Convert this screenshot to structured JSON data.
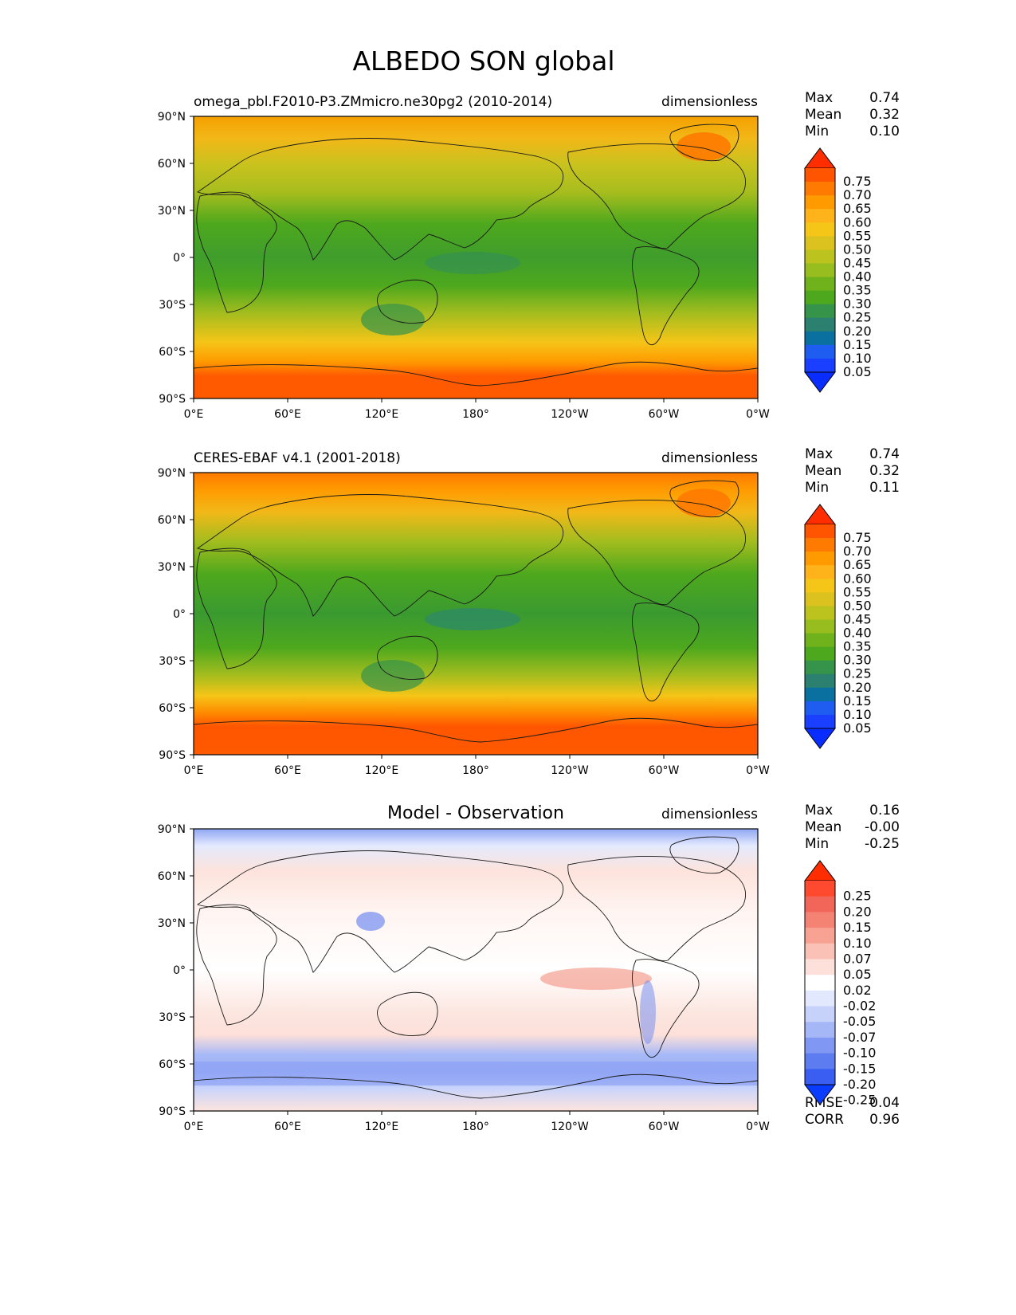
{
  "figure": {
    "title": "ALBEDO SON global"
  },
  "axes": {
    "lat_ticks": [
      "90°N",
      "60°N",
      "30°N",
      "0°",
      "30°S",
      "60°S",
      "90°S"
    ],
    "lon_ticks": [
      "0°E",
      "60°E",
      "120°E",
      "180°",
      "120°W",
      "60°W",
      "0°W"
    ]
  },
  "panels": [
    {
      "kind": "model",
      "title_left": "omega_pbl.F2010-P3.ZMmicro.ne30pg2 (2010-2014)",
      "title_center": "",
      "units": "dimensionless",
      "stats": [
        {
          "label": "Max",
          "value": "0.74"
        },
        {
          "label": "Mean",
          "value": "0.32"
        },
        {
          "label": "Min",
          "value": "0.10"
        }
      ],
      "extra_stats": []
    },
    {
      "kind": "obs",
      "title_left": "CERES-EBAF v4.1 (2001-2018)",
      "title_center": "",
      "units": "dimensionless",
      "stats": [
        {
          "label": "Max",
          "value": "0.74"
        },
        {
          "label": "Mean",
          "value": "0.32"
        },
        {
          "label": "Min",
          "value": "0.11"
        }
      ],
      "extra_stats": []
    },
    {
      "kind": "diff",
      "title_left": "",
      "title_center": "Model - Observation",
      "units": "dimensionless",
      "stats": [
        {
          "label": "Max",
          "value": "0.16"
        },
        {
          "label": "Mean",
          "value": "-0.00"
        },
        {
          "label": "Min",
          "value": "-0.25"
        }
      ],
      "extra_stats": [
        {
          "label": "RMSE",
          "value": "0.04"
        },
        {
          "label": "CORR",
          "value": "0.96"
        }
      ]
    }
  ],
  "colorbars": {
    "main": {
      "labels": [
        "0.75",
        "0.70",
        "0.65",
        "0.60",
        "0.55",
        "0.50",
        "0.45",
        "0.40",
        "0.35",
        "0.30",
        "0.25",
        "0.20",
        "0.15",
        "0.10",
        "0.05"
      ],
      "colors": [
        "#ff2d00",
        "#ff5500",
        "#ff7a00",
        "#ff9a00",
        "#ffb31a",
        "#f5c518",
        "#dcc21e",
        "#bcc21e",
        "#98bd1e",
        "#6fb21c",
        "#4ea81d",
        "#36934a",
        "#2b8070",
        "#0a70a0",
        "#1f5cf0",
        "#1a3fff",
        "#0a2dff"
      ]
    },
    "diff": {
      "labels": [
        "0.25",
        "0.20",
        "0.15",
        "0.10",
        "0.07",
        "0.05",
        "0.02",
        "-0.02",
        "-0.05",
        "-0.07",
        "-0.10",
        "-0.15",
        "-0.20",
        "-0.25"
      ],
      "colors": [
        "#ff2d00",
        "#ff4a30",
        "#f2665a",
        "#f48373",
        "#f7a293",
        "#fac2b6",
        "#fde0d9",
        "#ffffff",
        "#e2e8fd",
        "#c7d2fb",
        "#a6b7f8",
        "#8097f3",
        "#5c7cf0",
        "#3a5ef2",
        "#0a3cff"
      ]
    }
  },
  "chart_data": {
    "type": "heatmap",
    "title": "ALBEDO SON global",
    "xlabel": "",
    "ylabel": "",
    "x_ticks": [
      "0°E",
      "60°E",
      "120°E",
      "180°",
      "120°W",
      "60°W",
      "0°W"
    ],
    "y_ticks": [
      "90°N",
      "60°N",
      "30°N",
      "0°",
      "30°S",
      "60°S",
      "90°S"
    ],
    "panels": [
      {
        "name": "omega_pbl.F2010-P3.ZMmicro.ne30pg2 (2010-2014)",
        "zonal_profile_lat": [
          -90,
          -75,
          -65,
          -55,
          -45,
          -35,
          -25,
          -15,
          -5,
          5,
          15,
          25,
          35,
          45,
          55,
          65,
          75,
          90
        ],
        "zonal_profile_value": [
          0.68,
          0.67,
          0.58,
          0.48,
          0.4,
          0.32,
          0.25,
          0.24,
          0.25,
          0.27,
          0.28,
          0.3,
          0.34,
          0.4,
          0.45,
          0.5,
          0.58,
          0.62
        ],
        "stats": {
          "max": 0.74,
          "mean": 0.32,
          "min": 0.1
        }
      },
      {
        "name": "CERES-EBAF v4.1 (2001-2018)",
        "zonal_profile_lat": [
          -90,
          -75,
          -65,
          -55,
          -45,
          -35,
          -25,
          -15,
          -5,
          5,
          15,
          25,
          35,
          45,
          55,
          65,
          75,
          90
        ],
        "zonal_profile_value": [
          0.68,
          0.67,
          0.62,
          0.53,
          0.42,
          0.31,
          0.24,
          0.24,
          0.24,
          0.28,
          0.26,
          0.26,
          0.31,
          0.4,
          0.46,
          0.52,
          0.58,
          0.65
        ],
        "stats": {
          "max": 0.74,
          "mean": 0.32,
          "min": 0.11
        }
      },
      {
        "name": "Model - Observation",
        "zonal_profile_lat": [
          -90,
          -75,
          -65,
          -55,
          -45,
          -35,
          -25,
          -15,
          -5,
          5,
          15,
          25,
          35,
          45,
          55,
          65,
          75,
          90
        ],
        "zonal_profile_value": [
          0.01,
          -0.01,
          -0.05,
          -0.06,
          -0.02,
          0.02,
          0.02,
          0.01,
          0.01,
          -0.02,
          0.02,
          0.03,
          0.02,
          0.01,
          0.0,
          -0.02,
          -0.01,
          -0.04
        ],
        "stats": {
          "max": 0.16,
          "mean": -0.0,
          "min": -0.25,
          "rmse": 0.04,
          "corr": 0.96
        }
      }
    ]
  }
}
